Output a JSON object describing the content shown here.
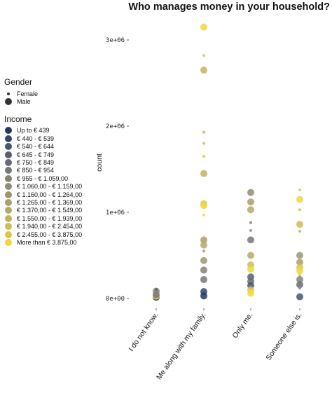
{
  "chart_data": {
    "type": "scatter",
    "title": "Who manages money in your household?",
    "ylabel": "count",
    "xlabel": "",
    "categories": [
      "I do not know.",
      "Me along with my family.",
      "Only me.",
      "Someone else is."
    ],
    "y_ticks": [
      "0e+00",
      "1e+06",
      "2e+06",
      "3e+06"
    ],
    "ylim": [
      -50000,
      3300000
    ],
    "legend_placement": "left",
    "gender_legend": {
      "title": "Gender",
      "items": [
        {
          "label": "Female",
          "size": "small"
        },
        {
          "label": "Male",
          "size": "large"
        }
      ]
    },
    "income_legend": {
      "title": "Income",
      "items": [
        {
          "label": "Up to € 439",
          "color": "#243763"
        },
        {
          "label": "€ 440 - € 539",
          "color": "#34466d"
        },
        {
          "label": "€ 540 - € 644",
          "color": "#465672"
        },
        {
          "label": "€ 645 - € 749",
          "color": "#585f74"
        },
        {
          "label": "€ 750 - € 849",
          "color": "#676a78"
        },
        {
          "label": "€ 850 - € 954",
          "color": "#757778"
        },
        {
          "label": "€ 955 - € 1.059,00",
          "color": "#838377"
        },
        {
          "label": "€ 1.060,00 - € 1.159,00",
          "color": "#908e74"
        },
        {
          "label": "€ 1.160,00 - € 1.264,00",
          "color": "#9c9770"
        },
        {
          "label": "€ 1.265,00 - € 1.369,00",
          "color": "#a9a06b"
        },
        {
          "label": "€ 1.370,00 - € 1.549,00",
          "color": "#b6a966"
        },
        {
          "label": "€ 1.550,00 - € 1.939,00",
          "color": "#c3b260"
        },
        {
          "label": "€ 1.940,00 - € 2.454,00",
          "color": "#d0bb57"
        },
        {
          "label": "€ 2.455,00 - € 3.875,00",
          "color": "#ddc54b"
        },
        {
          "label": "More than € 3.875,00",
          "color": "#f0d838"
        }
      ]
    },
    "points": [
      {
        "x": "I do not know.",
        "y": 15000,
        "gender": "Male",
        "income": 0
      },
      {
        "x": "I do not know.",
        "y": 28000,
        "gender": "Male",
        "income": 14
      },
      {
        "x": "I do not know.",
        "y": 45000,
        "gender": "Male",
        "income": 5
      },
      {
        "x": "I do not know.",
        "y": 60000,
        "gender": "Female",
        "income": 9
      },
      {
        "x": "I do not know.",
        "y": 85000,
        "gender": "Male",
        "income": 6
      },
      {
        "x": "I do not know.",
        "y": 105000,
        "gender": "Female",
        "income": 3
      },
      {
        "x": "Me along with my family.",
        "y": 3150000,
        "gender": "Male",
        "income": 14
      },
      {
        "x": "Me along with my family.",
        "y": 2820000,
        "gender": "Female",
        "income": 13
      },
      {
        "x": "Me along with my family.",
        "y": 2650000,
        "gender": "Male",
        "income": 11
      },
      {
        "x": "Me along with my family.",
        "y": 1930000,
        "gender": "Female",
        "income": 11
      },
      {
        "x": "Me along with my family.",
        "y": 1800000,
        "gender": "Female",
        "income": 12
      },
      {
        "x": "Me along with my family.",
        "y": 1650000,
        "gender": "Female",
        "income": 13
      },
      {
        "x": "Me along with my family.",
        "y": 1450000,
        "gender": "Male",
        "income": 11
      },
      {
        "x": "Me along with my family.",
        "y": 1100000,
        "gender": "Male",
        "income": 13
      },
      {
        "x": "Me along with my family.",
        "y": 1080000,
        "gender": "Male",
        "income": 14
      },
      {
        "x": "Me along with my family.",
        "y": 970000,
        "gender": "Female",
        "income": 14
      },
      {
        "x": "Me along with my family.",
        "y": 680000,
        "gender": "Male",
        "income": 9
      },
      {
        "x": "Me along with my family.",
        "y": 620000,
        "gender": "Male",
        "income": 10
      },
      {
        "x": "Me along with my family.",
        "y": 550000,
        "gender": "Female",
        "income": 8
      },
      {
        "x": "Me along with my family.",
        "y": 440000,
        "gender": "Male",
        "income": 8
      },
      {
        "x": "Me along with my family.",
        "y": 330000,
        "gender": "Male",
        "income": 6
      },
      {
        "x": "Me along with my family.",
        "y": 220000,
        "gender": "Male",
        "income": 5
      },
      {
        "x": "Me along with my family.",
        "y": 80000,
        "gender": "Male",
        "income": 1
      },
      {
        "x": "Me along with my family.",
        "y": 30000,
        "gender": "Male",
        "income": 0
      },
      {
        "x": "Only me.",
        "y": 1230000,
        "gender": "Male",
        "income": 7
      },
      {
        "x": "Only me.",
        "y": 1120000,
        "gender": "Male",
        "income": 9
      },
      {
        "x": "Only me.",
        "y": 1030000,
        "gender": "Male",
        "income": 10
      },
      {
        "x": "Only me.",
        "y": 880000,
        "gender": "Female",
        "income": 6
      },
      {
        "x": "Only me.",
        "y": 790000,
        "gender": "Female",
        "income": 7
      },
      {
        "x": "Only me.",
        "y": 680000,
        "gender": "Male",
        "income": 5
      },
      {
        "x": "Only me.",
        "y": 500000,
        "gender": "Male",
        "income": 10
      },
      {
        "x": "Only me.",
        "y": 390000,
        "gender": "Male",
        "income": 12
      },
      {
        "x": "Only me.",
        "y": 340000,
        "gender": "Male",
        "income": 14
      },
      {
        "x": "Only me.",
        "y": 250000,
        "gender": "Male",
        "income": 3
      },
      {
        "x": "Only me.",
        "y": 200000,
        "gender": "Male",
        "income": 4
      },
      {
        "x": "Only me.",
        "y": 150000,
        "gender": "Male",
        "income": 2
      },
      {
        "x": "Only me.",
        "y": 100000,
        "gender": "Male",
        "income": 13
      },
      {
        "x": "Only me.",
        "y": 60000,
        "gender": "Male",
        "income": 14
      },
      {
        "x": "Someone else is.",
        "y": 1260000,
        "gender": "Female",
        "income": 13
      },
      {
        "x": "Someone else is.",
        "y": 1150000,
        "gender": "Male",
        "income": 14
      },
      {
        "x": "Someone else is.",
        "y": 1030000,
        "gender": "Female",
        "income": 12
      },
      {
        "x": "Someone else is.",
        "y": 860000,
        "gender": "Male",
        "income": 12
      },
      {
        "x": "Someone else is.",
        "y": 780000,
        "gender": "Female",
        "income": 11
      },
      {
        "x": "Someone else is.",
        "y": 500000,
        "gender": "Male",
        "income": 8
      },
      {
        "x": "Someone else is.",
        "y": 420000,
        "gender": "Male",
        "income": 9
      },
      {
        "x": "Someone else is.",
        "y": 360000,
        "gender": "Male",
        "income": 13
      },
      {
        "x": "Someone else is.",
        "y": 320000,
        "gender": "Male",
        "income": 14
      },
      {
        "x": "Someone else is.",
        "y": 270000,
        "gender": "Female",
        "income": 12
      },
      {
        "x": "Someone else is.",
        "y": 220000,
        "gender": "Male",
        "income": 6
      },
      {
        "x": "Someone else is.",
        "y": 160000,
        "gender": "Male",
        "income": 4
      },
      {
        "x": "Someone else is.",
        "y": 120000,
        "gender": "Female",
        "income": 7
      },
      {
        "x": "Someone else is.",
        "y": 20000,
        "gender": "Male",
        "income": 2
      }
    ]
  }
}
